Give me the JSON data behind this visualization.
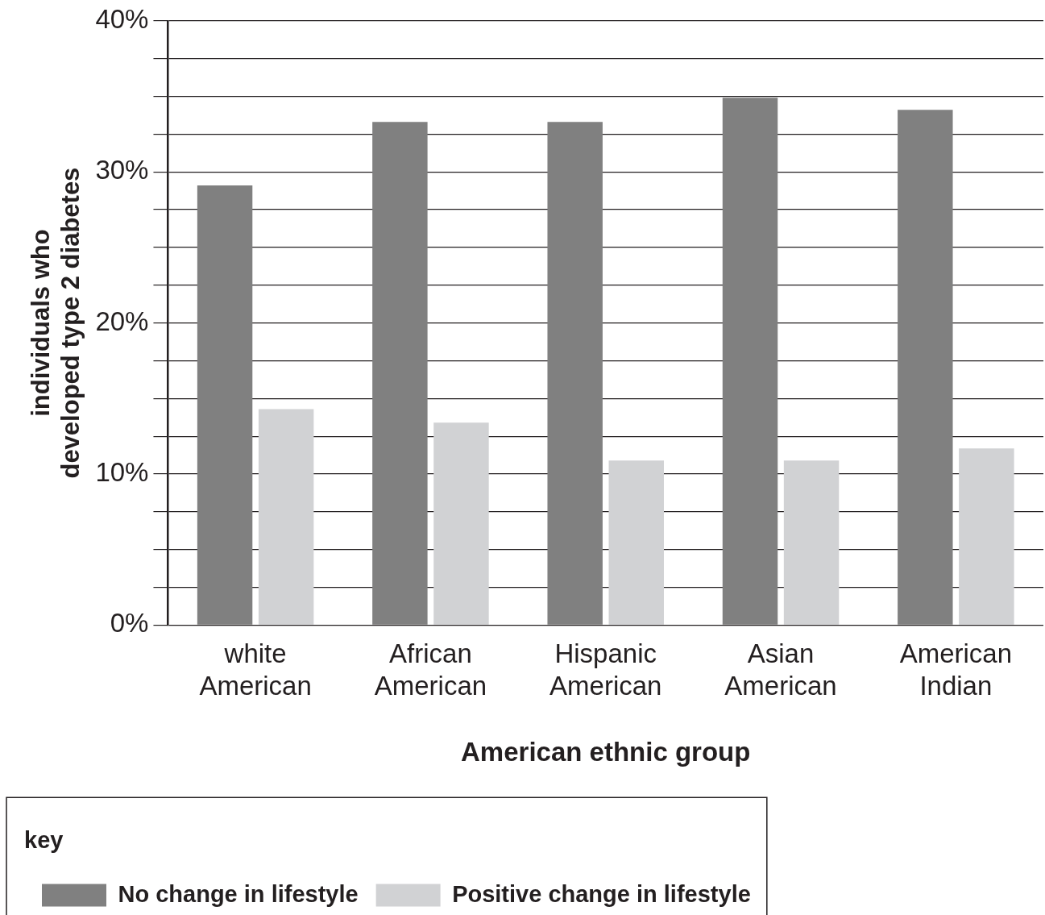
{
  "chart_data": {
    "type": "bar",
    "xlabel": "American ethnic group",
    "ylabel": "individuals who developed type 2 diabetes",
    "legend_title": "key",
    "categories": [
      "white American",
      "African American",
      "Hispanic American",
      "Asian American",
      "American Indian"
    ],
    "series": [
      {
        "name": "No change in lifestyle",
        "color": "#808080",
        "values": [
          29.1,
          33.3,
          33.3,
          34.9,
          34.1
        ]
      },
      {
        "name": "Positive change in lifestyle",
        "color": "#d1d2d4",
        "values": [
          14.3,
          13.4,
          10.9,
          10.9,
          11.7
        ]
      }
    ],
    "ylim": [
      0,
      40
    ],
    "yticks": [
      {
        "value": 0,
        "label": "0%"
      },
      {
        "value": 2.5,
        "label": null
      },
      {
        "value": 5,
        "label": null
      },
      {
        "value": 7.5,
        "label": null
      },
      {
        "value": 10,
        "label": "10%"
      },
      {
        "value": 12.5,
        "label": null
      },
      {
        "value": 15,
        "label": null
      },
      {
        "value": 17.5,
        "label": null
      },
      {
        "value": 20,
        "label": "20%"
      },
      {
        "value": 22.5,
        "label": null
      },
      {
        "value": 25,
        "label": null
      },
      {
        "value": 27.5,
        "label": null
      },
      {
        "value": 30,
        "label": "30%"
      },
      {
        "value": 32.5,
        "label": null
      },
      {
        "value": 35,
        "label": null
      },
      {
        "value": 37.5,
        "label": null
      },
      {
        "value": 40,
        "label": "40%"
      }
    ],
    "grid": "y",
    "legend": "bottom"
  }
}
